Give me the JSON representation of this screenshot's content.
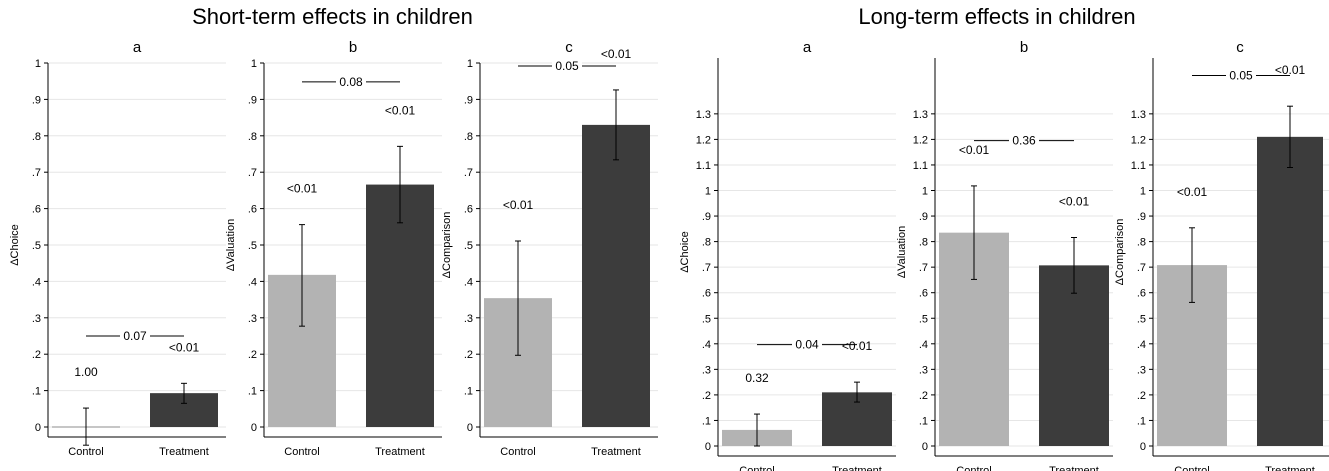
{
  "titles": {
    "short_term": "Short-term effects in children",
    "long_term": "Long-term effects in children"
  },
  "colors": {
    "control": "#b3b3b3",
    "treatment": "#3c3c3c",
    "grid": "#e6e6e6",
    "axis": "#000000"
  },
  "chart_data": [
    {
      "type": "bar",
      "group": "Short-term effects in children",
      "panel": "a",
      "ylabel": "ΔChoice",
      "categories": [
        "Control",
        "Treatment"
      ],
      "values": [
        0.0,
        0.093
      ],
      "ci_low": [
        -0.05,
        0.065
      ],
      "ci_high": [
        0.052,
        0.12
      ],
      "pvalues": [
        "1.00",
        "<0.01"
      ],
      "comparison_p": "0.07",
      "comparison_y": 0.25,
      "ylim": [
        0,
        1
      ],
      "yticks": [
        0,
        0.1,
        0.2,
        0.3,
        0.4,
        0.5,
        0.6,
        0.7,
        0.8,
        0.9,
        1
      ],
      "ytick_labels": [
        "0",
        ".1",
        ".2",
        ".3",
        ".4",
        ".5",
        ".6",
        ".7",
        ".8",
        ".9",
        "1"
      ],
      "grid": true
    },
    {
      "type": "bar",
      "group": "Short-term effects in children",
      "panel": "b",
      "ylabel": "ΔValuation",
      "categories": [
        "Control",
        "Treatment"
      ],
      "values": [
        0.418,
        0.666
      ],
      "ci_low": [
        0.277,
        0.561
      ],
      "ci_high": [
        0.556,
        0.771
      ],
      "pvalues": [
        "<0.01",
        "<0.01"
      ],
      "comparison_p": "0.08",
      "comparison_y": 0.948,
      "ylim": [
        0,
        1
      ],
      "yticks": [
        0,
        0.1,
        0.2,
        0.3,
        0.4,
        0.5,
        0.6,
        0.7,
        0.8,
        0.9,
        1
      ],
      "ytick_labels": [
        "0",
        ".1",
        ".2",
        ".3",
        ".4",
        ".5",
        ".6",
        ".7",
        ".8",
        ".9",
        "1"
      ],
      "grid": true
    },
    {
      "type": "bar",
      "group": "Short-term effects in children",
      "panel": "c",
      "ylabel": "ΔComparison",
      "categories": [
        "Control",
        "Treatment"
      ],
      "values": [
        0.354,
        0.83
      ],
      "ci_low": [
        0.197,
        0.734
      ],
      "ci_high": [
        0.511,
        0.926
      ],
      "pvalues": [
        "<0.01",
        "<0.01"
      ],
      "comparison_p": "0.05",
      "comparison_y": 0.997,
      "ylim": [
        0,
        1
      ],
      "yticks": [
        0,
        0.1,
        0.2,
        0.3,
        0.4,
        0.5,
        0.6,
        0.7,
        0.8,
        0.9,
        1
      ],
      "ytick_labels": [
        "0",
        ".1",
        ".2",
        ".3",
        ".4",
        ".5",
        ".6",
        ".7",
        ".8",
        ".9",
        "1"
      ],
      "grid": true
    },
    {
      "type": "bar",
      "group": "Long-term effects in children",
      "panel": "a",
      "ylabel": "ΔChoice",
      "categories": [
        "Control",
        "Treatment"
      ],
      "values": [
        0.063,
        0.21
      ],
      "ci_low": [
        0.0,
        0.172
      ],
      "ci_high": [
        0.125,
        0.25
      ],
      "pvalues": [
        "0.32",
        "<0.01"
      ],
      "comparison_p": "0.04",
      "comparison_y": 0.397,
      "ylim": [
        0,
        1.3
      ],
      "yticks": [
        0,
        0.1,
        0.2,
        0.3,
        0.4,
        0.5,
        0.6,
        0.7,
        0.8,
        0.9,
        1,
        1.1,
        1.2,
        1.3
      ],
      "ytick_labels": [
        "0",
        ".1",
        ".2",
        ".3",
        ".4",
        ".5",
        ".6",
        ".7",
        ".8",
        ".9",
        "1",
        "1.1",
        "1.2",
        "1.3"
      ],
      "grid": true
    },
    {
      "type": "bar",
      "group": "Long-term effects in children",
      "panel": "b",
      "ylabel": "ΔValuation",
      "categories": [
        "Control",
        "Treatment"
      ],
      "values": [
        0.835,
        0.707
      ],
      "ci_low": [
        0.652,
        0.598
      ],
      "ci_high": [
        1.018,
        0.816
      ],
      "pvalues": [
        "<0.01",
        "<0.01"
      ],
      "comparison_p": "0.36",
      "comparison_y": 1.195,
      "ylim": [
        0,
        1.3
      ],
      "yticks": [
        0,
        0.1,
        0.2,
        0.3,
        0.4,
        0.5,
        0.6,
        0.7,
        0.8,
        0.9,
        1,
        1.1,
        1.2,
        1.3
      ],
      "ytick_labels": [
        "0",
        ".1",
        ".2",
        ".3",
        ".4",
        ".5",
        ".6",
        ".7",
        ".8",
        ".9",
        "1",
        "1.1",
        "1.2",
        "1.3"
      ],
      "grid": true
    },
    {
      "type": "bar",
      "group": "Long-term effects in children",
      "panel": "c",
      "ylabel": "ΔComparison",
      "categories": [
        "Control",
        "Treatment"
      ],
      "values": [
        0.708,
        1.21
      ],
      "ci_low": [
        0.562,
        1.09
      ],
      "ci_high": [
        0.854,
        1.33
      ],
      "pvalues": [
        "<0.01",
        "<0.01"
      ],
      "comparison_p": "0.05",
      "comparison_y": 1.45,
      "ylim": [
        0,
        1.3
      ],
      "yticks": [
        0,
        0.1,
        0.2,
        0.3,
        0.4,
        0.5,
        0.6,
        0.7,
        0.8,
        0.9,
        1,
        1.1,
        1.2,
        1.3
      ],
      "ytick_labels": [
        "0",
        ".1",
        ".2",
        ".3",
        ".4",
        ".5",
        ".6",
        ".7",
        ".8",
        ".9",
        "1",
        "1.1",
        "1.2",
        "1.3"
      ],
      "grid": true
    }
  ]
}
